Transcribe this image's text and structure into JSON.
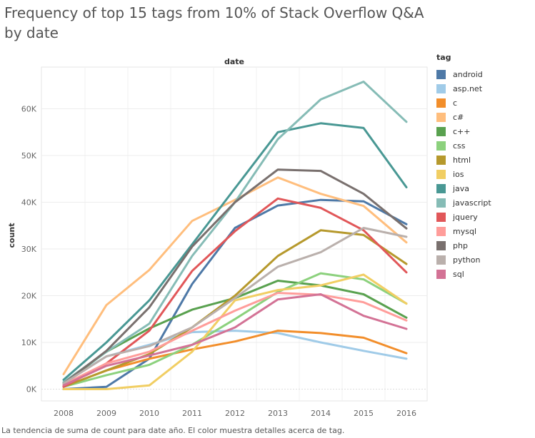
{
  "title": "Frequency of top 15 tags from 10% of Stack Overflow Q&A by date",
  "caption": "La tendencia de suma de count para date año.  El color muestra detalles acerca de tag.",
  "chart_data": {
    "type": "line",
    "title": "Frequency of top 15 tags from 10% of Stack Overflow Q&A by date",
    "xlabel": "date",
    "ylabel": "count",
    "x": [
      "2008",
      "2009",
      "2010",
      "2011",
      "2012",
      "2013",
      "2014",
      "2015",
      "2016"
    ],
    "y_ticks": [
      "0K",
      "10K",
      "20K",
      "30K",
      "40K",
      "50K",
      "60K"
    ],
    "ylim": [
      0,
      66000
    ],
    "grid": true,
    "legend_title": "tag",
    "legend_position": "right",
    "series": [
      {
        "name": "android",
        "color": "#4e79a7",
        "values": [
          0,
          500,
          6500,
          22500,
          34500,
          39300,
          40500,
          40200,
          35300
        ]
      },
      {
        "name": "asp.net",
        "color": "#a0cbe8",
        "values": [
          1500,
          7000,
          9500,
          12200,
          12500,
          12000,
          10000,
          8200,
          6500
        ]
      },
      {
        "name": "c",
        "color": "#f28e2b",
        "values": [
          500,
          4000,
          6500,
          8500,
          10200,
          12500,
          12000,
          11000,
          7700
        ]
      },
      {
        "name": "c#",
        "color": "#ffbe7d",
        "values": [
          3200,
          18000,
          25500,
          36000,
          40500,
          45300,
          41800,
          39200,
          31400
        ]
      },
      {
        "name": "c++",
        "color": "#59a14f",
        "values": [
          1300,
          8000,
          13000,
          17000,
          19500,
          23200,
          22200,
          20300,
          15300
        ]
      },
      {
        "name": "css",
        "color": "#8cd17d",
        "values": [
          500,
          3000,
          5200,
          9500,
          15000,
          20800,
          24800,
          23500,
          18300
        ]
      },
      {
        "name": "html",
        "color": "#b6992d",
        "values": [
          500,
          4000,
          7500,
          13200,
          20000,
          28500,
          34000,
          33000,
          26800
        ]
      },
      {
        "name": "ios",
        "color": "#f1ce63",
        "values": [
          0,
          0,
          800,
          8000,
          19000,
          21200,
          22200,
          24500,
          18300
        ]
      },
      {
        "name": "java",
        "color": "#499894",
        "values": [
          2000,
          10000,
          19000,
          31000,
          43000,
          55000,
          56900,
          55900,
          43200
        ]
      },
      {
        "name": "javascript",
        "color": "#86bcb6",
        "values": [
          1500,
          8000,
          14000,
          28500,
          40000,
          53500,
          62000,
          65800,
          57200
        ]
      },
      {
        "name": "jquery",
        "color": "#e15759",
        "values": [
          500,
          5500,
          12500,
          25300,
          33800,
          40800,
          38800,
          34000,
          25000
        ]
      },
      {
        "name": "mysql",
        "color": "#ff9d9a",
        "values": [
          1000,
          5500,
          8000,
          12500,
          16800,
          20600,
          20200,
          18600,
          14700
        ]
      },
      {
        "name": "php",
        "color": "#79706e",
        "values": [
          1200,
          8200,
          17500,
          30500,
          40000,
          47000,
          46700,
          41800,
          34400
        ]
      },
      {
        "name": "python",
        "color": "#bab0ac",
        "values": [
          1200,
          7000,
          9200,
          13200,
          19500,
          26200,
          29300,
          34500,
          32600
        ]
      },
      {
        "name": "sql",
        "color": "#d37295",
        "values": [
          800,
          5000,
          7200,
          9500,
          13200,
          19200,
          20300,
          15700,
          12900
        ]
      }
    ]
  }
}
